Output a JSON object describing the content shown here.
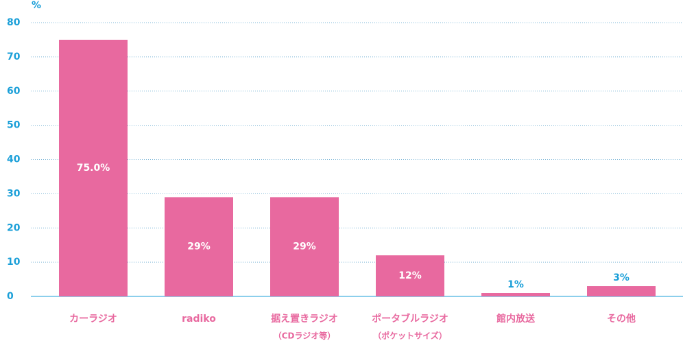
{
  "chart_data": {
    "type": "bar",
    "y_label": "%",
    "categories": [
      [
        "カーラジオ"
      ],
      [
        "radiko"
      ],
      [
        "据え置きラジオ",
        "（CDラジオ等）"
      ],
      [
        "ポータブルラジオ",
        "（ポケットサイズ）"
      ],
      [
        "館内放送"
      ],
      [
        "その他"
      ]
    ],
    "values": [
      75.0,
      29,
      29,
      12,
      1,
      3
    ],
    "value_labels": [
      "75.0%",
      "29%",
      "29%",
      "12%",
      "1%",
      "3%"
    ],
    "color": "#e8699f",
    "ylim": [
      0,
      80
    ],
    "yticks": [
      0,
      10,
      20,
      30,
      40,
      50,
      60,
      70,
      80
    ],
    "grid": true
  }
}
